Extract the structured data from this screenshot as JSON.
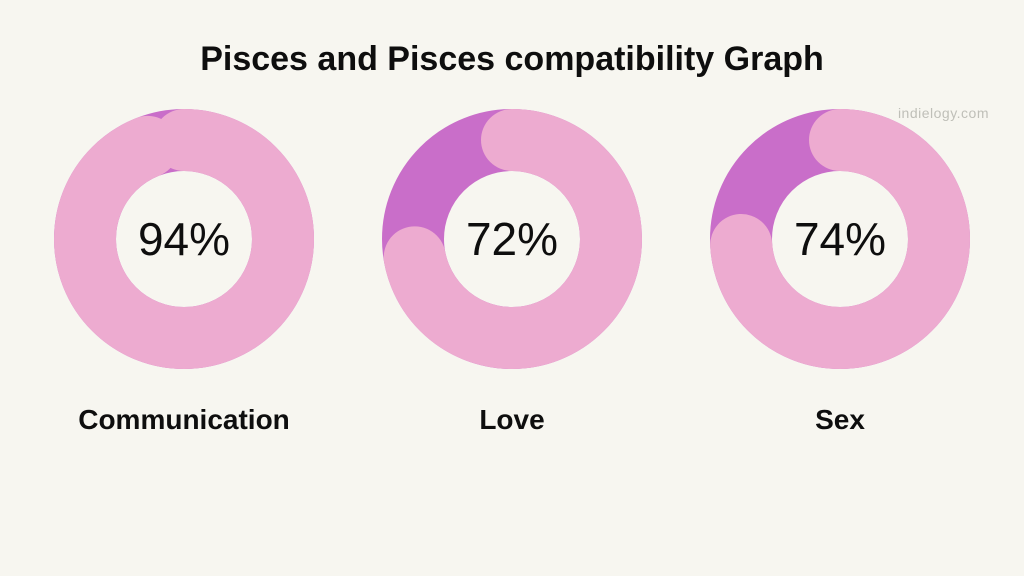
{
  "background_color": "#f7f6f0",
  "title": {
    "text": "Pisces and Pisces compatibility Graph",
    "fontsize": 34,
    "color": "#0e0e0e",
    "fontweight": 800
  },
  "watermark": {
    "text": "indielogy.com",
    "color": "#bfbfb8",
    "fontsize": 14
  },
  "donut": {
    "size": 260,
    "stroke_width": 62,
    "track_color": "#c96ec9",
    "progress_color": "#edabd0",
    "rounded_caps": true
  },
  "percent_style": {
    "fontsize": 46,
    "color": "#0e0e0e",
    "fontweight": 400
  },
  "label_style": {
    "fontsize": 28,
    "color": "#0e0e0e",
    "fontweight": 700
  },
  "charts": [
    {
      "value": 94,
      "percent_text": "94%",
      "label": "Communication"
    },
    {
      "value": 72,
      "percent_text": "72%",
      "label": "Love"
    },
    {
      "value": 74,
      "percent_text": "74%",
      "label": "Sex"
    }
  ]
}
